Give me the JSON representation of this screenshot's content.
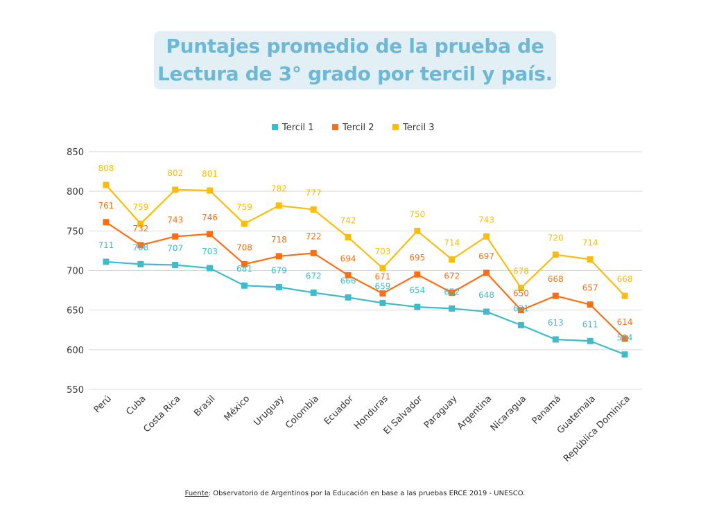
{
  "title": {
    "line1": "Puntajes promedio de la prueba de",
    "line2": "Lectura de 3° grado por tercil y país."
  },
  "source": {
    "label": "Fuente",
    "text": ": Observatorio de Argentinos por la Educación en base a las pruebas ERCE 2019 - UNESCO."
  },
  "colors": {
    "title": "#6bb9d6",
    "title_bg": "#e2eff4",
    "grid": "#d9d9d9",
    "axis_text": "#333333"
  },
  "chart_data": {
    "type": "line",
    "title": "Puntajes promedio de la prueba de Lectura de 3° grado por tercil y país.",
    "xlabel": "",
    "ylabel": "",
    "ylim": [
      550,
      850
    ],
    "yticks": [
      550,
      600,
      650,
      700,
      750,
      800,
      850
    ],
    "grid": true,
    "legend_position": "top-center",
    "categories": [
      "Perú",
      "Cuba",
      "Costa Rica",
      "Brasil",
      "México",
      "Uruguay",
      "Colombia",
      "Ecuador",
      "Honduras",
      "El Salvador",
      "Paraguay",
      "Argentina",
      "Nicaragua",
      "Panamá",
      "Guatemala",
      "República Dominica"
    ],
    "series": [
      {
        "name": "Tercil 1",
        "color": "#3fbccc",
        "values": [
          711,
          708,
          707,
          703,
          681,
          679,
          672,
          666,
          659,
          654,
          652,
          648,
          631,
          613,
          611,
          594
        ]
      },
      {
        "name": "Tercil 2",
        "color": "#ff6d10",
        "values": [
          761,
          732,
          743,
          746,
          708,
          718,
          722,
          694,
          671,
          695,
          672,
          697,
          650,
          668,
          657,
          614
        ]
      },
      {
        "name": "Tercil 3",
        "color": "#fbbc0a",
        "values": [
          808,
          759,
          802,
          801,
          759,
          782,
          777,
          742,
          703,
          750,
          714,
          743,
          678,
          720,
          714,
          668
        ]
      }
    ]
  }
}
